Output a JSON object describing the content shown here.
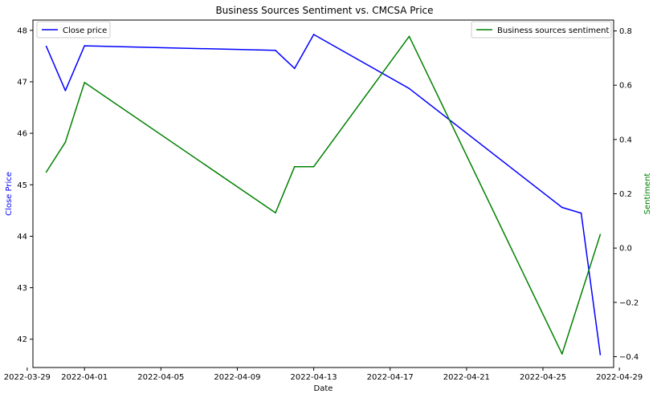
{
  "chart_data": {
    "type": "line",
    "title": "Business Sources Sentiment vs. CMCSA Price",
    "xlabel": "Date",
    "ylabel_left": "Close Price",
    "ylabel_right": "Sentiment",
    "x_ticks": [
      "2022-03-29",
      "2022-04-01",
      "2022-04-05",
      "2022-04-09",
      "2022-04-13",
      "2022-04-17",
      "2022-04-21",
      "2022-04-25",
      "2022-04-29"
    ],
    "y_left_ticks": [
      42,
      43,
      44,
      45,
      46,
      47,
      48
    ],
    "y_right_ticks": [
      -0.4,
      -0.2,
      0.0,
      0.2,
      0.4,
      0.6,
      0.8
    ],
    "y_left_lim": [
      41.45,
      48.2
    ],
    "y_right_lim": [
      -0.44,
      0.84
    ],
    "x_lim": [
      "2022-03-29",
      "2022-04-29"
    ],
    "grid": false,
    "series": [
      {
        "name": "Close price",
        "axis": "left",
        "color": "#0000ff",
        "legend_position": "top-left",
        "points": [
          {
            "x": "2022-03-30",
            "y": 47.69
          },
          {
            "x": "2022-03-31",
            "y": 46.83
          },
          {
            "x": "2022-04-01",
            "y": 47.7
          },
          {
            "x": "2022-04-11",
            "y": 47.61
          },
          {
            "x": "2022-04-12",
            "y": 47.26
          },
          {
            "x": "2022-04-13",
            "y": 47.92
          },
          {
            "x": "2022-04-18",
            "y": 46.87
          },
          {
            "x": "2022-04-26",
            "y": 44.56
          },
          {
            "x": "2022-04-27",
            "y": 44.45
          },
          {
            "x": "2022-04-28",
            "y": 41.7
          }
        ]
      },
      {
        "name": "Business sources sentiment",
        "axis": "right",
        "color": "#008000",
        "legend_position": "top-right",
        "points": [
          {
            "x": "2022-03-30",
            "y": 0.28
          },
          {
            "x": "2022-03-31",
            "y": 0.39
          },
          {
            "x": "2022-04-01",
            "y": 0.61
          },
          {
            "x": "2022-04-11",
            "y": 0.13
          },
          {
            "x": "2022-04-12",
            "y": 0.3
          },
          {
            "x": "2022-04-13",
            "y": 0.3
          },
          {
            "x": "2022-04-18",
            "y": 0.78
          },
          {
            "x": "2022-04-26",
            "y": -0.39
          },
          {
            "x": "2022-04-28",
            "y": 0.05
          }
        ]
      }
    ]
  }
}
